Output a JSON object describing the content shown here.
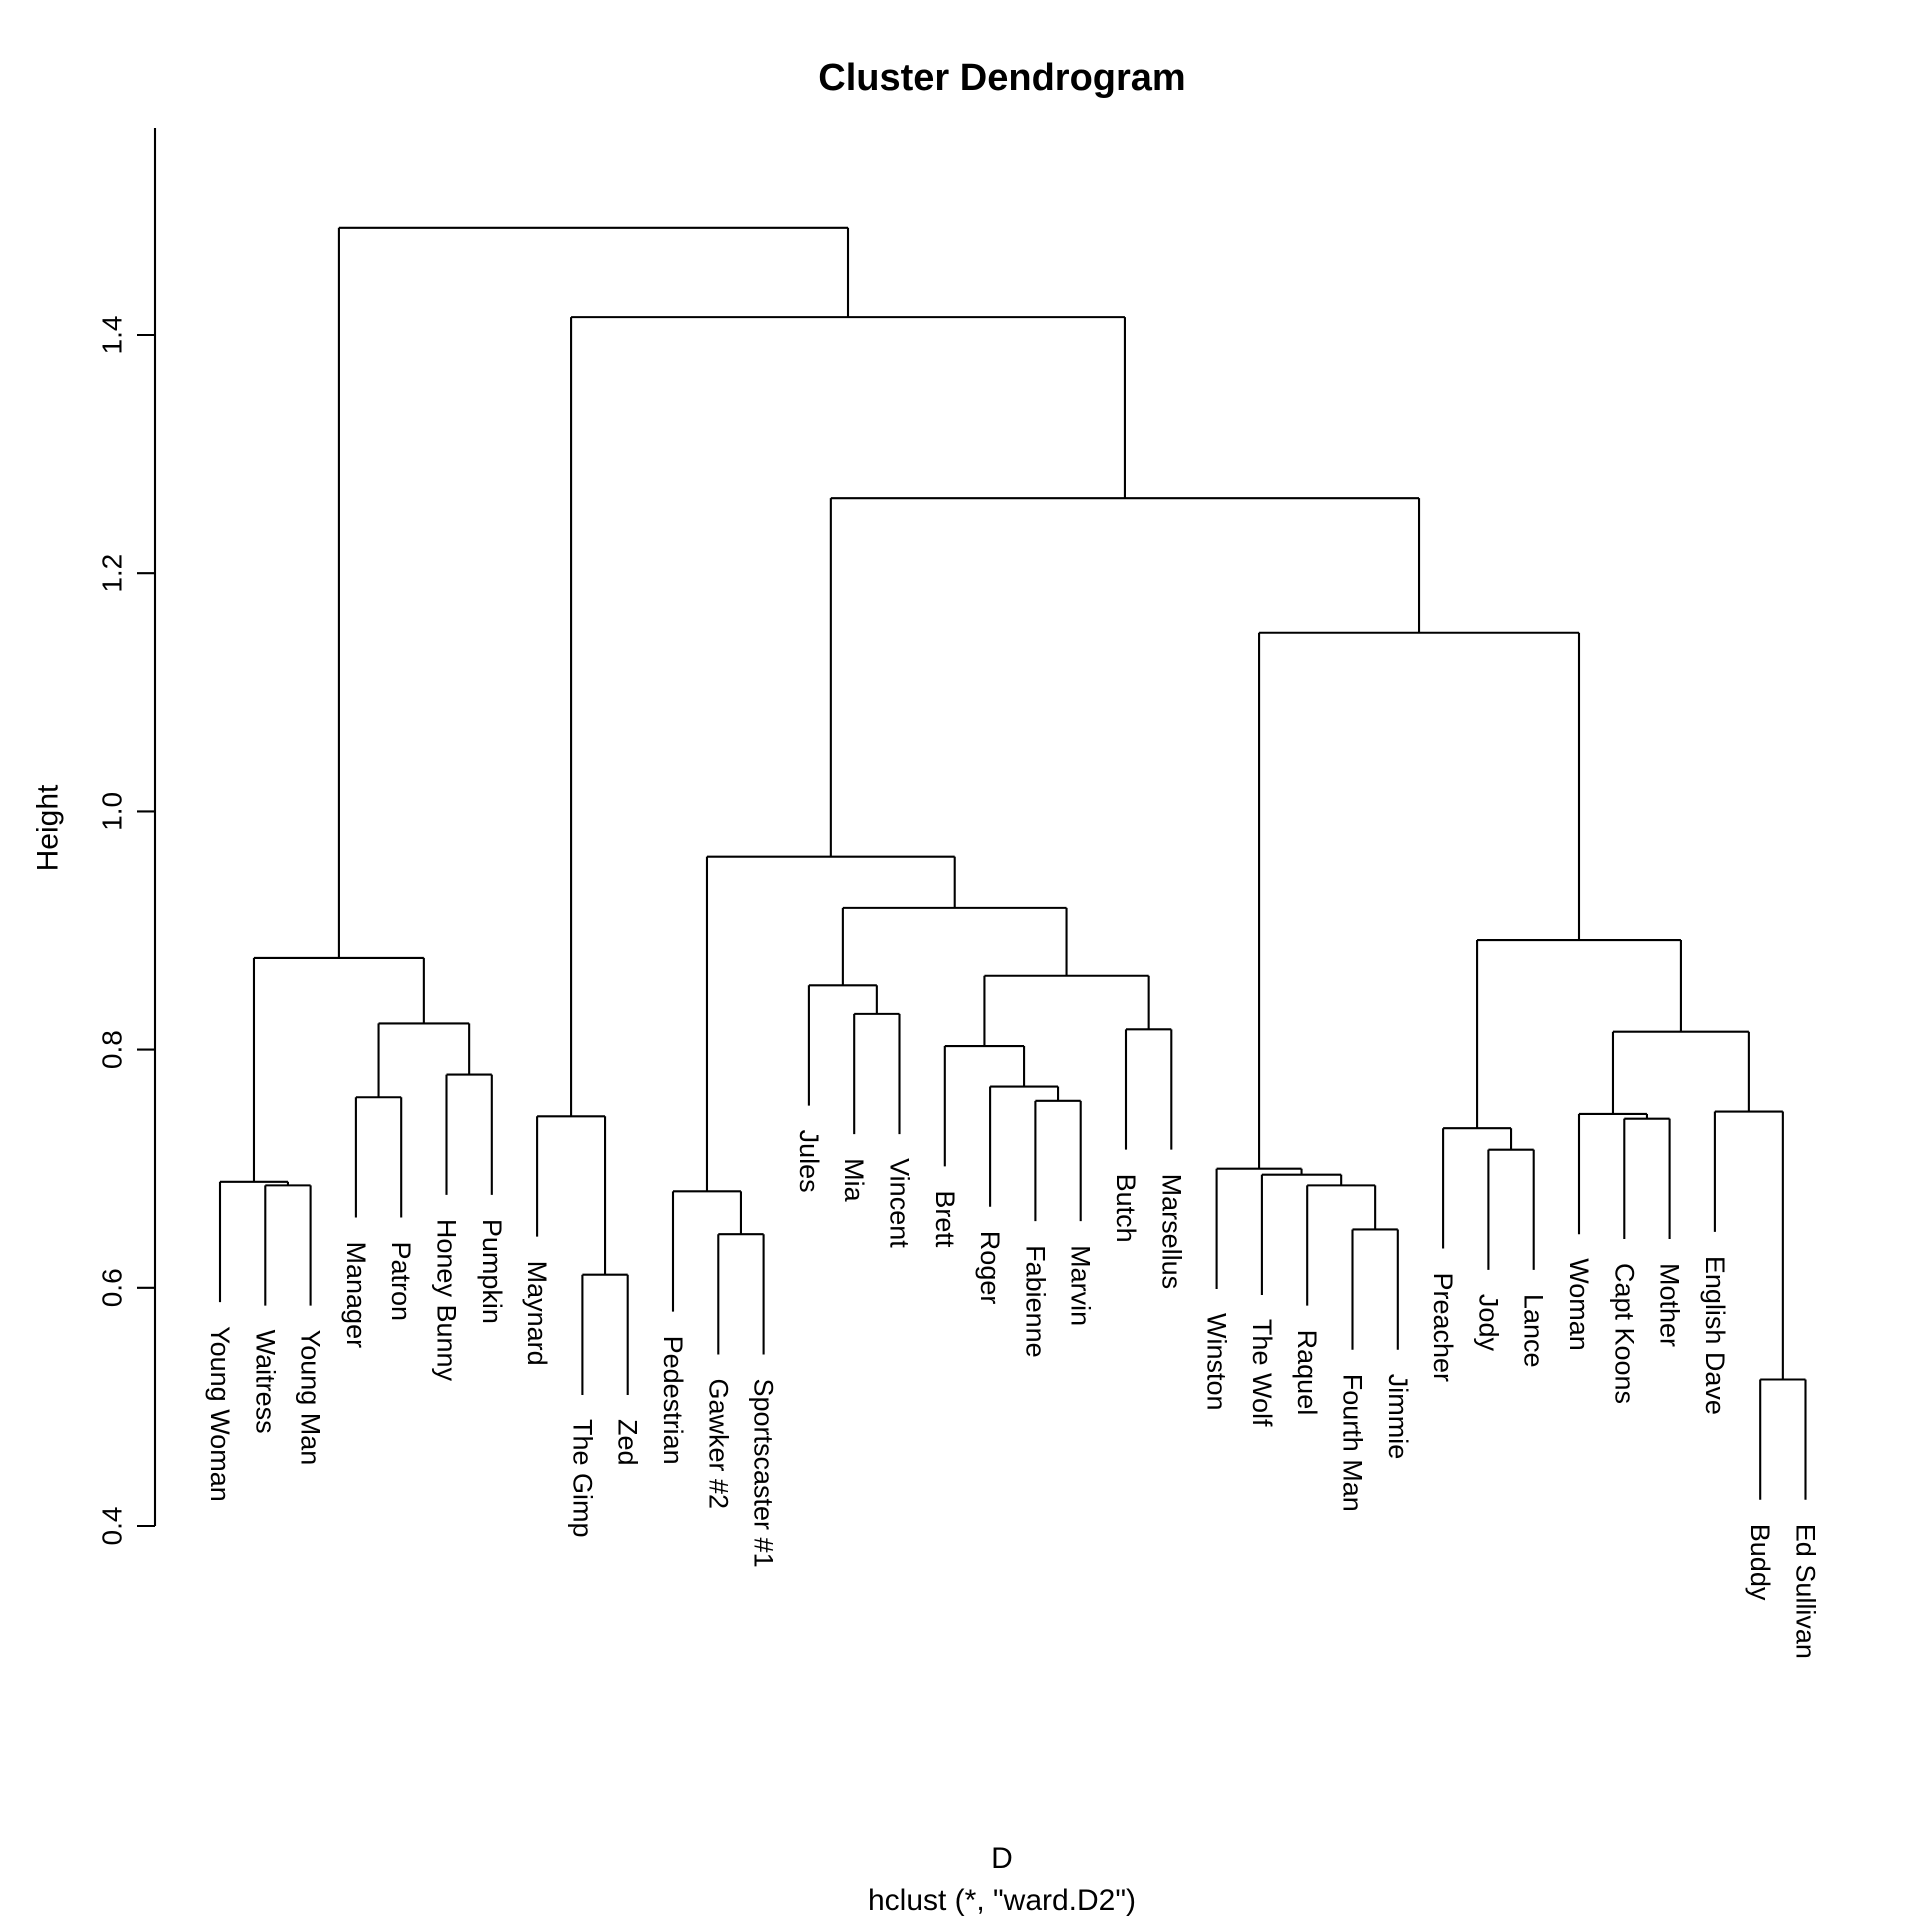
{
  "title": "Cluster Dendrogram",
  "y_axis": {
    "label": "Height",
    "tick_labels": [
      "1.4",
      "1.2",
      "1.0",
      "0.8",
      "0.6",
      "0.4"
    ],
    "tick_values": [
      1.4,
      1.2,
      1.0,
      0.8,
      0.6,
      0.4
    ]
  },
  "caption": {
    "xlab": "D",
    "sub": "hclust (*, \"ward.D2\")"
  },
  "chart_data": {
    "type": "dendrogram",
    "method": "hclust ward.D2",
    "title": "Cluster Dendrogram",
    "ylabel": "Height",
    "ylim": [
      0.4,
      1.52
    ],
    "grid": false,
    "hang": 0.101,
    "leaves": [
      "Young Woman",
      "Waitress",
      "Young Man",
      "Manager",
      "Patron",
      "Honey Bunny",
      "Pumpkin",
      "Maynard",
      "The Gimp",
      "Zed",
      "Pedestrian",
      "Gawker #2",
      "Sportscaster #1",
      "Jules",
      "Mia",
      "Vincent",
      "Brett",
      "Roger",
      "Fabienne",
      "Marvin",
      "Butch",
      "Marsellus",
      "Winston",
      "The Wolf",
      "Raquel",
      "Fourth Man",
      "Jimmie",
      "Preacher",
      "Jody",
      "Lance",
      "Woman",
      "Capt Koons",
      "Mother",
      "English Dave",
      "Buddy",
      "Ed Sullivan"
    ],
    "merge_tree": {
      "h": 1.49,
      "c": [
        {
          "h": 0.877,
          "c": [
            {
              "h": 0.689,
              "c": [
                "Young Woman",
                {
                  "h": 0.686,
                  "c": [
                    "Waitress",
                    "Young Man"
                  ]
                }
              ]
            },
            {
              "h": 0.822,
              "c": [
                {
                  "h": 0.76,
                  "c": [
                    "Manager",
                    "Patron"
                  ]
                },
                {
                  "h": 0.779,
                  "c": [
                    "Honey Bunny",
                    "Pumpkin"
                  ]
                }
              ]
            }
          ]
        },
        {
          "h": 1.415,
          "c": [
            {
              "h": 0.744,
              "c": [
                "Maynard",
                {
                  "h": 0.611,
                  "c": [
                    "The Gimp",
                    "Zed"
                  ]
                }
              ]
            },
            {
              "h": 1.263,
              "c": [
                {
                  "h": 0.962,
                  "c": [
                    {
                      "h": 0.681,
                      "c": [
                        "Pedestrian",
                        {
                          "h": 0.645,
                          "c": [
                            "Gawker #2",
                            "Sportscaster #1"
                          ]
                        }
                      ]
                    },
                    {
                      "h": 0.919,
                      "c": [
                        {
                          "h": 0.854,
                          "c": [
                            "Jules",
                            {
                              "h": 0.83,
                              "c": [
                                "Mia",
                                "Vincent"
                              ]
                            }
                          ]
                        },
                        {
                          "h": 0.862,
                          "c": [
                            {
                              "h": 0.803,
                              "c": [
                                "Brett",
                                {
                                  "h": 0.769,
                                  "c": [
                                    "Roger",
                                    {
                                      "h": 0.757,
                                      "c": [
                                        "Fabienne",
                                        "Marvin"
                                      ]
                                    }
                                  ]
                                }
                              ]
                            },
                            {
                              "h": 0.817,
                              "c": [
                                "Butch",
                                "Marsellus"
                              ]
                            }
                          ]
                        }
                      ]
                    }
                  ]
                },
                {
                  "h": 1.15,
                  "c": [
                    {
                      "h": 0.7,
                      "c": [
                        "Winston",
                        {
                          "h": 0.695,
                          "c": [
                            "The Wolf",
                            {
                              "h": 0.686,
                              "c": [
                                "Raquel",
                                {
                                  "h": 0.649,
                                  "c": [
                                    "Fourth Man",
                                    "Jimmie"
                                  ]
                                }
                              ]
                            }
                          ]
                        }
                      ]
                    },
                    {
                      "h": 0.892,
                      "c": [
                        {
                          "h": 0.734,
                          "c": [
                            "Preacher",
                            {
                              "h": 0.716,
                              "c": [
                                "Jody",
                                "Lance"
                              ]
                            }
                          ]
                        },
                        {
                          "h": 0.815,
                          "c": [
                            {
                              "h": 0.746,
                              "c": [
                                "Woman",
                                {
                                  "h": 0.742,
                                  "c": [
                                    "Capt Koons",
                                    "Mother"
                                  ]
                                }
                              ]
                            },
                            {
                              "h": 0.748,
                              "c": [
                                "English Dave",
                                {
                                  "h": 0.523,
                                  "c": [
                                    "Buddy",
                                    "Ed Sullivan"
                                  ]
                                }
                              ]
                            }
                          ]
                        }
                      ]
                    }
                  ]
                }
              ]
            }
          ]
        }
      ]
    },
    "colors": {
      "line": "#000000",
      "text": "#000000",
      "background": "#ffffff"
    }
  }
}
